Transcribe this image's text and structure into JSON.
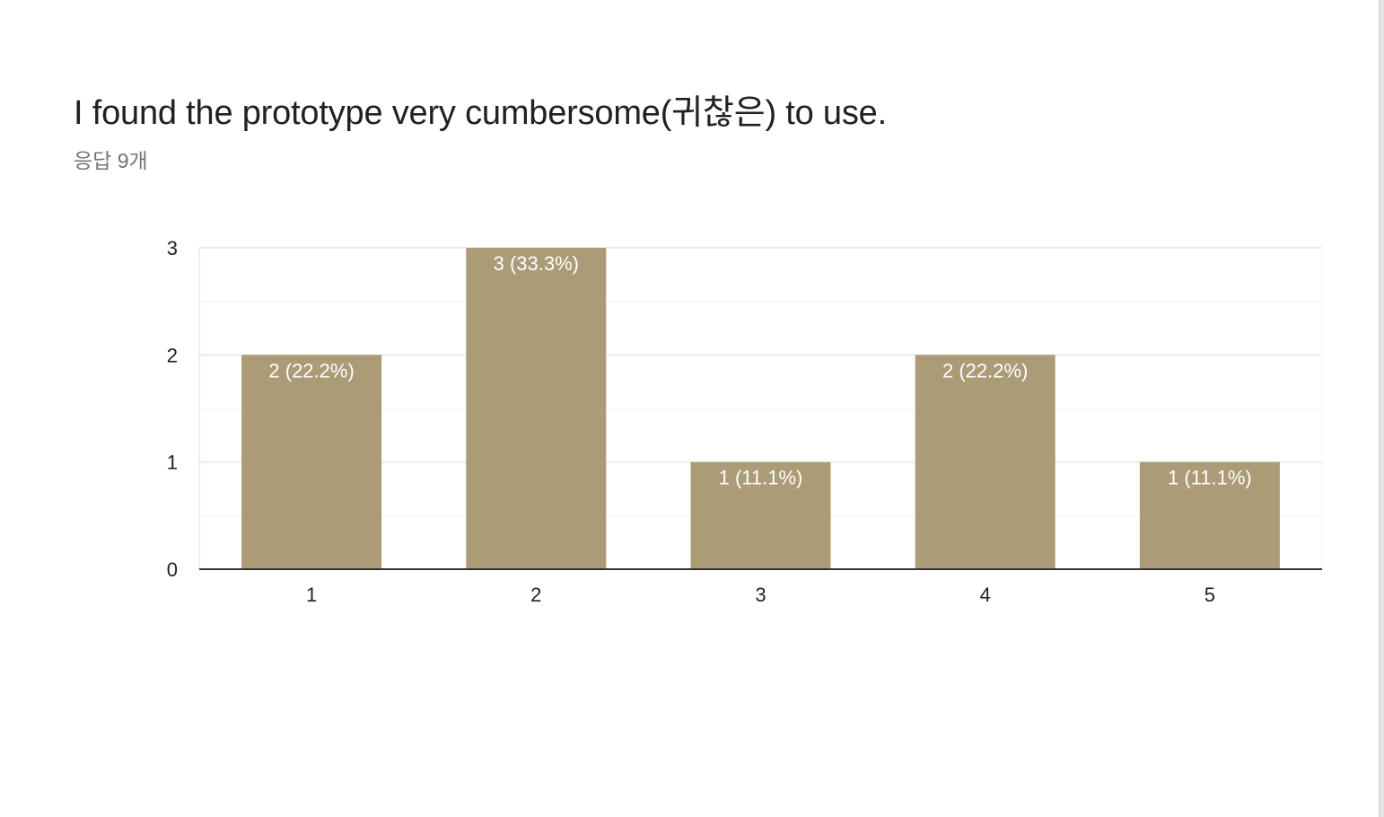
{
  "question": {
    "title": "I found the prototype very cumbersome(귀찮은) to use.",
    "response_count": "응답 9개"
  },
  "colors": {
    "bar": "#ab9b76",
    "grid": "#ebebeb",
    "minor_grid": "#f3f3f3",
    "axis": "#333333",
    "bar_label": "#ffffff",
    "tick_label": "#222222"
  },
  "chart_data": {
    "type": "bar",
    "categories": [
      "1",
      "2",
      "3",
      "4",
      "5"
    ],
    "values": [
      2,
      3,
      1,
      2,
      1
    ],
    "data_labels": [
      "2 (22.2%)",
      "3 (33.3%)",
      "1 (11.1%)",
      "2 (22.2%)",
      "1 (11.1%)"
    ],
    "y_ticks": [
      "0",
      "1",
      "2",
      "3"
    ],
    "ylim": [
      0,
      3
    ],
    "grid": true,
    "legend": "none"
  }
}
